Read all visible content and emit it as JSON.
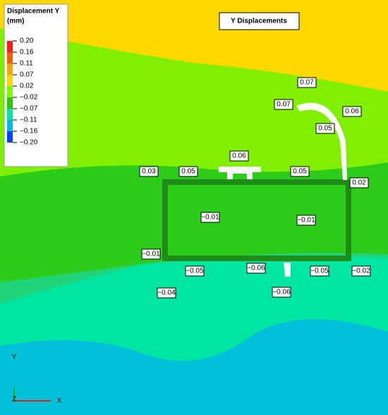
{
  "title": "Y Displacements",
  "legend": {
    "title": [
      "Displacement Y",
      "(mm)"
    ],
    "labels": [
      "0.20",
      "0.16",
      "0.11",
      "0.07",
      "0.02",
      "−0.02",
      "−0.07",
      "−0.11",
      "−0.16",
      "−0.20"
    ],
    "colors": [
      "#ff1a1a",
      "#ff5a00",
      "#ffa500",
      "#ffd700",
      "#7fff00",
      "#22cc00",
      "#00e6a0",
      "#00b8e6",
      "#0040ff"
    ]
  },
  "labels": [
    "0.07",
    "0.07",
    "0.06",
    "0.05",
    "0.06",
    "0.03",
    "0.05",
    "0.05",
    "0.02",
    "−0.01",
    "−0.01",
    "−0.01",
    "−0.05",
    "−0.06",
    "−0.05",
    "−0.02",
    "−0.04",
    "−0.06"
  ],
  "triad": {
    "y": "Y",
    "z": "Z",
    "x": "X"
  }
}
